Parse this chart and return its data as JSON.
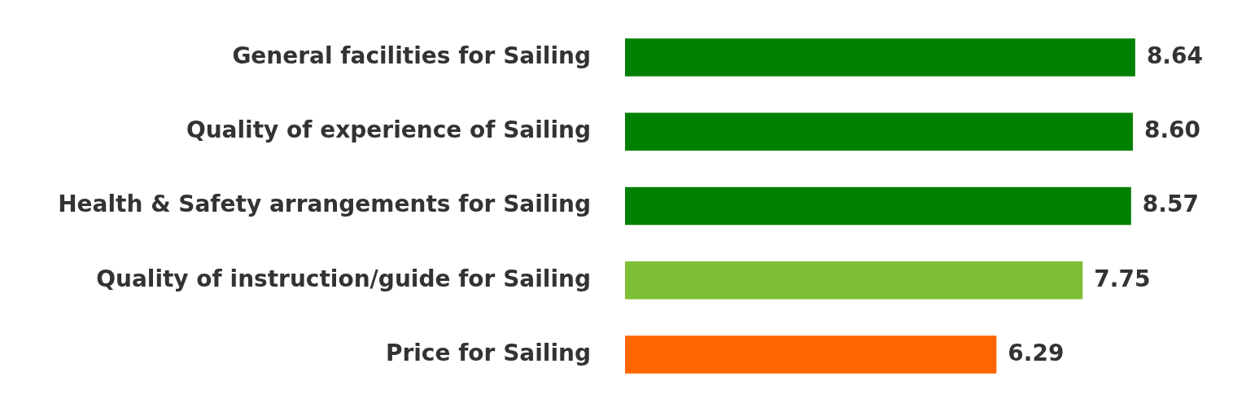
{
  "chart_data": {
    "type": "bar",
    "orientation": "horizontal",
    "categories": [
      "General facilities for Sailing",
      "Quality of experience of Sailing",
      "Health & Safety arrangements for Sailing",
      "Quality of instruction/guide for Sailing",
      "Price for Sailing"
    ],
    "values": [
      8.64,
      8.6,
      8.57,
      7.75,
      6.29
    ],
    "colors": [
      "#008000",
      "#008000",
      "#008000",
      "#7dbf35",
      "#ff6600"
    ],
    "value_labels": [
      "8.64",
      "8.60",
      "8.57",
      "7.75",
      "6.29"
    ],
    "tick_labels": "y",
    "grid": false,
    "legend": false
  }
}
